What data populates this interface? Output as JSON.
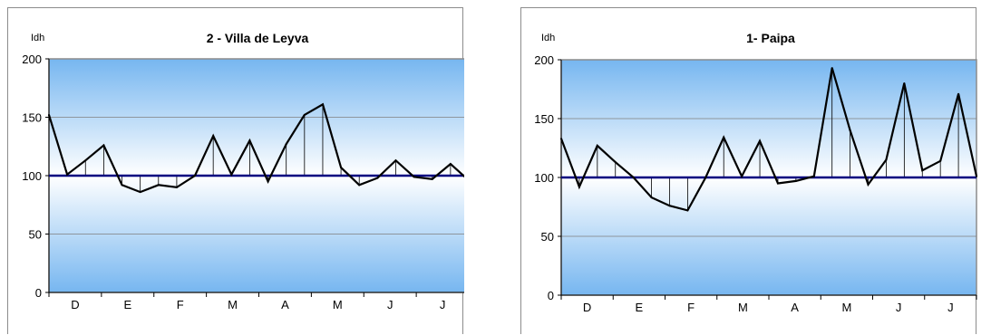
{
  "chart_data": [
    {
      "type": "line",
      "title": "2 - Villa de Leyva",
      "ylabel": "Idh",
      "xlabel": "",
      "ylim": [
        0,
        200
      ],
      "yticks": [
        0,
        50,
        100,
        150,
        200
      ],
      "baseline": 100,
      "month_labels": [
        "D",
        "E",
        "F",
        "M",
        "A",
        "M",
        "J",
        "J"
      ],
      "series": [
        {
          "values": [
            152,
            101,
            113,
            126,
            92,
            86,
            92,
            90,
            100,
            134,
            101,
            130,
            95,
            127,
            152,
            161,
            107,
            92,
            98,
            113,
            99,
            97,
            110,
            96
          ]
        }
      ],
      "grid": true,
      "colors": {
        "line": "#000000",
        "baseline": "#000080"
      }
    },
    {
      "type": "line",
      "title": "1- Paipa",
      "ylabel": "Idh",
      "xlabel": "",
      "ylim": [
        0,
        200
      ],
      "yticks": [
        0,
        50,
        100,
        150,
        200
      ],
      "baseline": 100,
      "month_labels": [
        "D",
        "E",
        "F",
        "M",
        "A",
        "M",
        "J",
        "J"
      ],
      "series": [
        {
          "values": [
            133,
            92,
            127,
            113,
            100,
            83,
            76,
            72,
            100,
            134,
            101,
            131,
            95,
            97,
            101,
            193,
            140,
            94,
            115,
            180,
            106,
            114,
            171,
            101
          ]
        }
      ],
      "grid": true,
      "colors": {
        "line": "#000000",
        "baseline": "#000080"
      }
    }
  ]
}
